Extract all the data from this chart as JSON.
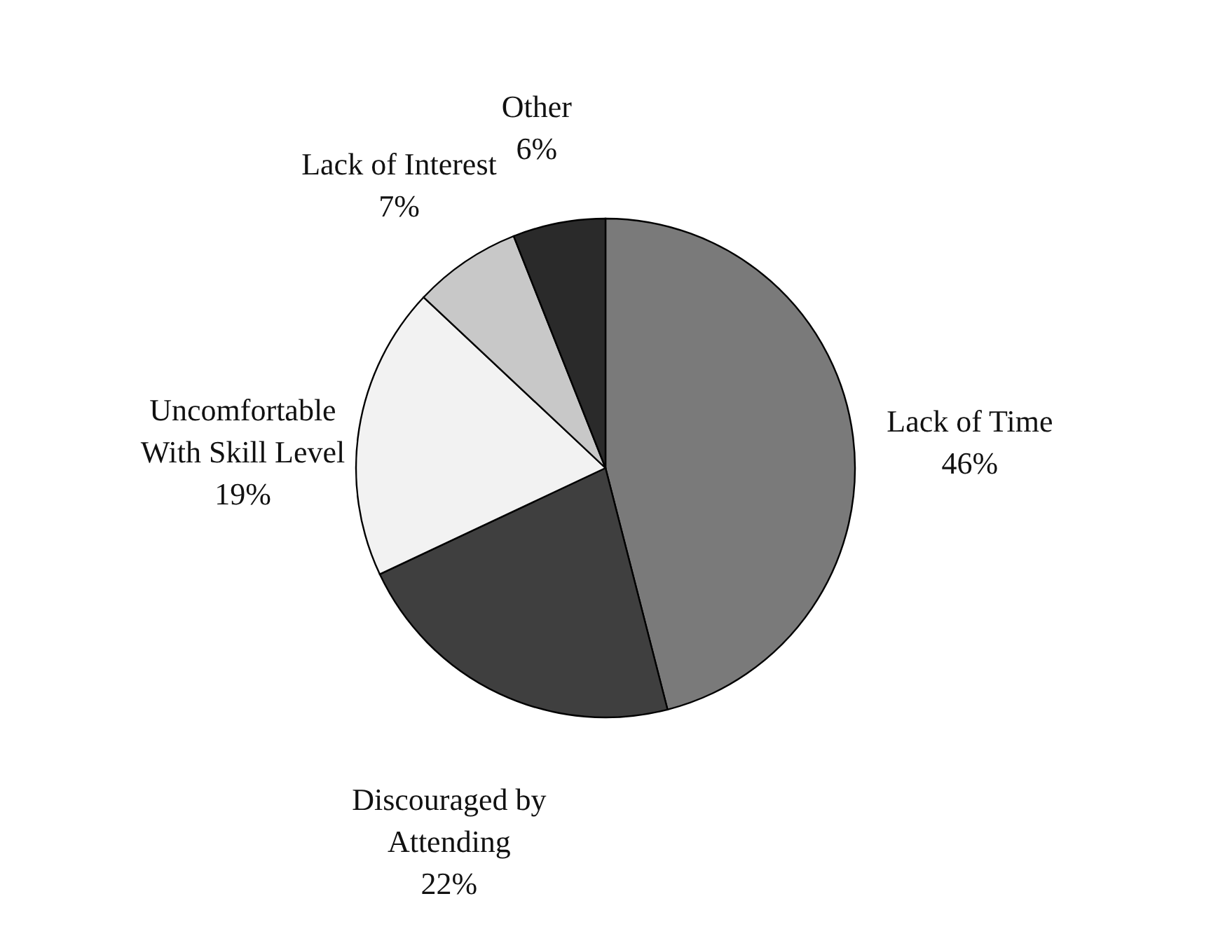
{
  "chart_data": {
    "type": "pie",
    "categories": [
      "Lack of Time",
      "Discouraged by\nAttending",
      "Uncomfortable\nWith Skill Level",
      "Lack of Interest",
      "Other"
    ],
    "values": [
      46,
      22,
      19,
      7,
      6
    ],
    "value_labels": [
      "46%",
      "22%",
      "19%",
      "7%",
      "6%"
    ],
    "colors": [
      "#7a7a7a",
      "#3f3f3f",
      "#f2f2f2",
      "#c8c8c8",
      "#2a2a2a"
    ],
    "legend": false
  }
}
